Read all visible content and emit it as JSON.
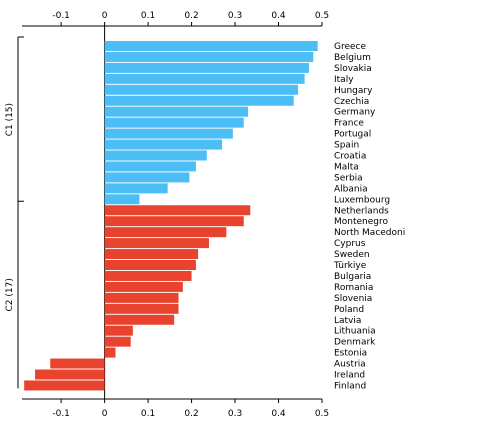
{
  "chart_data": {
    "type": "bar",
    "orientation": "horizontal",
    "xlim": [
      -0.19,
      0.5
    ],
    "xticks": [
      -0.1,
      0,
      0.1,
      0.2,
      0.3,
      0.4,
      0.5
    ],
    "xtick_labels": [
      "-0.1",
      "0",
      "0.1",
      "0.2",
      "0.3",
      "0.4",
      "0.5"
    ],
    "x_axis_positions": [
      "top",
      "bottom"
    ],
    "grid": false,
    "legend": "none",
    "groups": [
      {
        "label": "C1 (15)",
        "color": "#4dbdf5",
        "categories": [
          "Greece",
          "Belgium",
          "Slovakia",
          "Italy",
          "Hungary",
          "Czechia",
          "Germany",
          "France",
          "Portugal",
          "Spain",
          "Croatia",
          "Malta",
          "Serbia",
          "Albania",
          "Luxembourg"
        ],
        "values": [
          0.49,
          0.48,
          0.47,
          0.46,
          0.445,
          0.435,
          0.33,
          0.32,
          0.295,
          0.27,
          0.235,
          0.21,
          0.195,
          0.145,
          0.08
        ]
      },
      {
        "label": "C2 (17)",
        "color": "#e8432f",
        "categories": [
          "Netherlands",
          "Montenegro",
          "North Macedoni",
          "Cyprus",
          "Sweden",
          "Türkiye",
          "Bulgaria",
          "Romania",
          "Slovenia",
          "Poland",
          "Latvia",
          "Lithuania",
          "Denmark",
          "Estonia",
          "Austria",
          "Ireland",
          "Finland"
        ],
        "values": [
          0.335,
          0.32,
          0.28,
          0.24,
          0.215,
          0.21,
          0.2,
          0.18,
          0.17,
          0.17,
          0.16,
          0.065,
          0.06,
          0.025,
          -0.125,
          -0.16,
          -0.185
        ]
      }
    ]
  }
}
